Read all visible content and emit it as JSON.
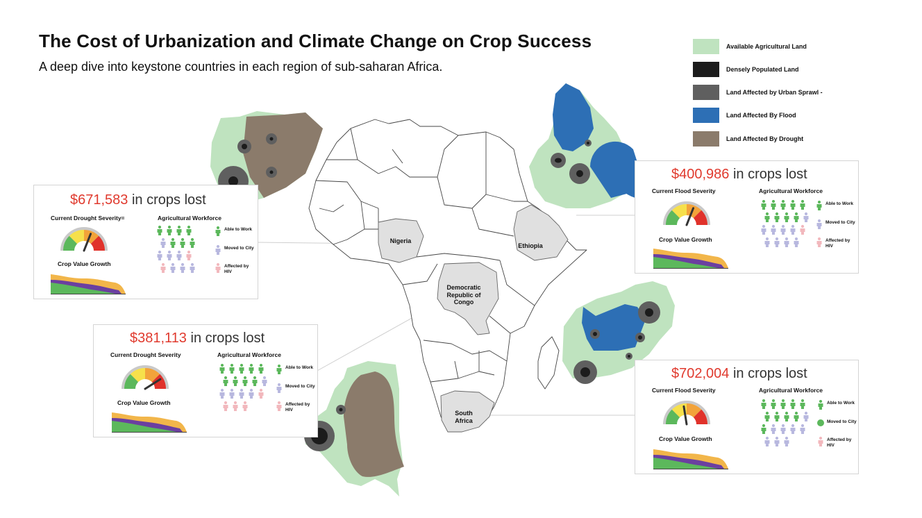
{
  "title": "The Cost of Urbanization and Climate Change on Crop Success",
  "subtitle": "A deep dive into keystone countries in each region of sub-saharan Africa.",
  "colors": {
    "agricultural": "#bfe3bf",
    "dense": "#1c1c1c",
    "sprawl": "#5f5f5f",
    "flood": "#2d6fb5",
    "drought": "#8b7b6b",
    "highlight_country": "#e0e0e0",
    "loss_amount": "#e03a2e",
    "worker_green": "#5cb85c",
    "worker_lavender": "#b8b8df",
    "worker_pink": "#f2b8bd"
  },
  "legend": [
    {
      "label": "Available Agricultural Land",
      "color": "#bfe3bf"
    },
    {
      "label": "Densely Populated Land",
      "color": "#1c1c1c"
    },
    {
      "label": "Land Affected by Urban Sprawl -",
      "color": "#5f5f5f"
    },
    {
      "label": "Land Affected By Flood",
      "color": "#2d6fb5"
    },
    {
      "label": "Land Affected By Drought",
      "color": "#8b7b6b"
    }
  ],
  "map_labels": {
    "nigeria": "Nigeria",
    "ethiopia": "Ethiopia",
    "drc": "Democratic Republic of Congo",
    "south_africa": "South Africa"
  },
  "cards": [
    {
      "id": "nigeria",
      "amount": "$671,583",
      "suffix": " in crops lost",
      "severity_label": "Current Drought Severity=",
      "severity_level": 0.62,
      "growth_label": "Crop Value Growth",
      "workforce_label": "Agricultural Workforce",
      "legend": [
        "Able to Work",
        "Moved to City",
        "Affected by HIV"
      ],
      "workers": [
        "able",
        "able",
        "able",
        "able",
        "moved",
        "able",
        "able",
        "able",
        "moved",
        "moved",
        "moved",
        "pink",
        "pink",
        "moved",
        "moved",
        "moved"
      ]
    },
    {
      "id": "ethiopia",
      "amount": "$400,986",
      "suffix": " in crops lost",
      "severity_label": "Current Flood Severity",
      "severity_level": 0.62,
      "growth_label": "Crop Value Growth",
      "workforce_label": "Agricultural Workforce",
      "legend": [
        "Able to Work",
        "Moved to City",
        "Affected by HIV"
      ],
      "workers": [
        "able",
        "able",
        "able",
        "able",
        "able",
        "able",
        "able",
        "able",
        "able",
        "moved",
        "moved",
        "moved",
        "moved",
        "moved",
        "pink",
        "moved",
        "moved",
        "moved",
        "moved"
      ]
    },
    {
      "id": "drc",
      "amount": "$381,113",
      "suffix": " in crops lost",
      "severity_label": "Current Drought Severity",
      "severity_level": 0.82,
      "growth_label": "Crop Value Growth",
      "workforce_label": "Agricultural Workforce",
      "legend": [
        "Able to Work",
        "Moved to City",
        "Affected by HIV"
      ],
      "workers": [
        "able",
        "able",
        "able",
        "able",
        "able",
        "able",
        "able",
        "able",
        "able",
        "moved",
        "moved",
        "moved",
        "moved",
        "moved",
        "pink",
        "pink",
        "pink",
        "pink"
      ]
    },
    {
      "id": "south-africa",
      "amount": "$702,004",
      "suffix": " in crops lost",
      "severity_label": "Current Flood Severity",
      "severity_level": 0.45,
      "growth_label": "Crop Value Growth",
      "workforce_label": "Agricultural Workforce",
      "legend": [
        "Able to Work",
        "Moved to City",
        "Affected by HIV"
      ],
      "workers": [
        "able",
        "able",
        "able",
        "able",
        "able",
        "able",
        "able",
        "able",
        "able",
        "moved",
        "able",
        "moved",
        "moved",
        "moved",
        "moved",
        "moved",
        "moved",
        "moved"
      ]
    }
  ]
}
